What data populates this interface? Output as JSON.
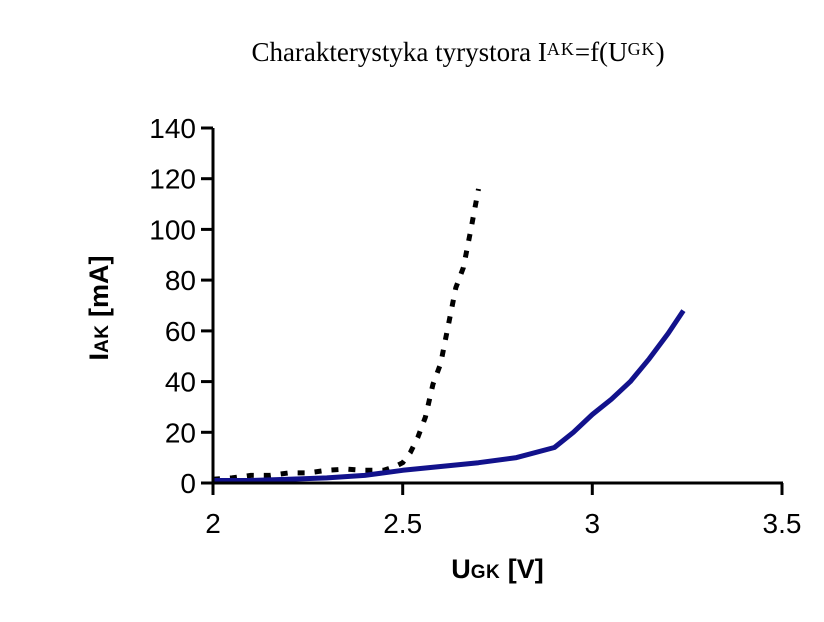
{
  "page": {
    "background": "#ffffff",
    "text_color": "#000000"
  },
  "title": {
    "prefix": "Charakterystyka tyrystora I",
    "sub1": "AK",
    "mid": "=f(U",
    "sub2": "GK",
    "suffix": ")"
  },
  "axes": {
    "x_label": {
      "prefix": "U",
      "sub": "GK",
      "suffix": " [V]"
    },
    "y_label": {
      "prefix": "I",
      "sub": "AK",
      "suffix": " [mA]"
    }
  },
  "chart_data": {
    "type": "line",
    "title": "Charakterystyka tyrystora IAK=f(UGK)",
    "xlabel": "UGK [V]",
    "ylabel": "IAK [mA]",
    "xlim": [
      2,
      3.5
    ],
    "ylim": [
      0,
      140
    ],
    "x_ticks": [
      2,
      2.5,
      3,
      3.5
    ],
    "y_ticks": [
      0,
      20,
      40,
      60,
      80,
      100,
      120,
      140
    ],
    "grid": false,
    "legend": "none",
    "axis_color": "#000000",
    "series": [
      {
        "name": "gate-characteristic-dashed",
        "line_style": "dashed",
        "color": "#000000",
        "points": [
          [
            2.0,
            1.5
          ],
          [
            2.05,
            2
          ],
          [
            2.1,
            3
          ],
          [
            2.15,
            3
          ],
          [
            2.2,
            4
          ],
          [
            2.25,
            4
          ],
          [
            2.3,
            5
          ],
          [
            2.35,
            5.5
          ],
          [
            2.4,
            5
          ],
          [
            2.45,
            5
          ],
          [
            2.48,
            6.5
          ],
          [
            2.5,
            8
          ],
          [
            2.52,
            12
          ],
          [
            2.54,
            18
          ],
          [
            2.56,
            26
          ],
          [
            2.58,
            39
          ],
          [
            2.6,
            47
          ],
          [
            2.62,
            62
          ],
          [
            2.64,
            77
          ],
          [
            2.66,
            85
          ],
          [
            2.68,
            100
          ],
          [
            2.7,
            116
          ]
        ]
      },
      {
        "name": "gate-characteristic-solid",
        "line_style": "solid",
        "color": "#12128C",
        "points": [
          [
            2.0,
            1
          ],
          [
            2.1,
            1
          ],
          [
            2.2,
            1.5
          ],
          [
            2.3,
            2
          ],
          [
            2.4,
            3
          ],
          [
            2.5,
            5
          ],
          [
            2.6,
            6.5
          ],
          [
            2.7,
            8
          ],
          [
            2.8,
            10
          ],
          [
            2.9,
            14
          ],
          [
            2.95,
            20
          ],
          [
            3.0,
            27
          ],
          [
            3.05,
            33
          ],
          [
            3.1,
            40
          ],
          [
            3.15,
            49
          ],
          [
            3.2,
            59
          ],
          [
            3.24,
            68
          ]
        ]
      }
    ]
  }
}
